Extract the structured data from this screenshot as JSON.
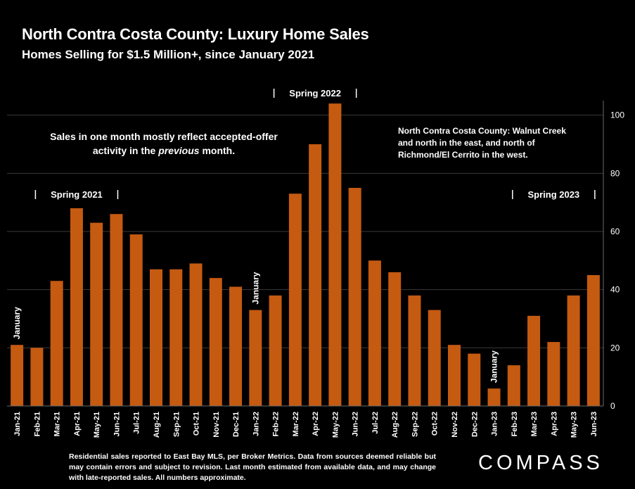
{
  "header": {
    "title": "North Contra Costa County: Luxury Home Sales",
    "subtitle": "Homes Selling for $1.5 Million+, since January 2021"
  },
  "notes": {
    "left_prefix": "Sales in one month mostly reflect accepted-offer activity in the ",
    "left_emphasis": "previous",
    "left_suffix": " month.",
    "right": "North Contra Costa County: Walnut Creek and north in the east, and north of Richmond/El Cerrito in the west.",
    "footnote": "Residential sales reported to East Bay MLS, per Broker Metrics. Data from sources deemed reliable but may contain errors and subject to revision.  Last month estimated from available data, and may change with late-reported sales. All numbers approximate."
  },
  "brand": {
    "logo": "COMPASS"
  },
  "colors": {
    "bar": "#C55A11",
    "background": "#000000",
    "gridline": "#3a3a3a",
    "text": "#ffffff"
  },
  "chart_data": {
    "type": "bar",
    "categories": [
      "Jan-21",
      "Feb-21",
      "Mar-21",
      "Apr-21",
      "May-21",
      "Jun-21",
      "Jul-21",
      "Aug-21",
      "Sep-21",
      "Oct-21",
      "Nov-21",
      "Dec-21",
      "Jan-22",
      "Feb-22",
      "Mar-22",
      "Apr-22",
      "May-22",
      "Jun-22",
      "Jul-22",
      "Aug-22",
      "Sep-22",
      "Oct-22",
      "Nov-22",
      "Dec-22",
      "Jan-23",
      "Feb-23",
      "Mar-23",
      "Apr-23",
      "May-23",
      "Jun-23"
    ],
    "values": [
      21,
      20,
      43,
      68,
      63,
      66,
      59,
      47,
      47,
      49,
      44,
      41,
      33,
      38,
      73,
      90,
      104,
      75,
      50,
      46,
      38,
      33,
      21,
      18,
      6,
      14,
      31,
      22,
      38,
      45
    ],
    "ylim": [
      0,
      105
    ],
    "yticks": [
      0,
      20,
      40,
      60,
      80,
      100
    ],
    "y_axis_side": "right",
    "grid": true,
    "annotations": {
      "january_labels": [
        {
          "index": 0,
          "text": "January"
        },
        {
          "index": 12,
          "text": "January"
        },
        {
          "index": 24,
          "text": "January"
        }
      ],
      "spring_labels": [
        {
          "text": "Spring 2021",
          "from_index": 1,
          "to_index": 5
        },
        {
          "text": "Spring 2022",
          "from_index": 13,
          "to_index": 17
        },
        {
          "text": "Spring 2023",
          "from_index": 25,
          "to_index": 29
        }
      ]
    }
  }
}
